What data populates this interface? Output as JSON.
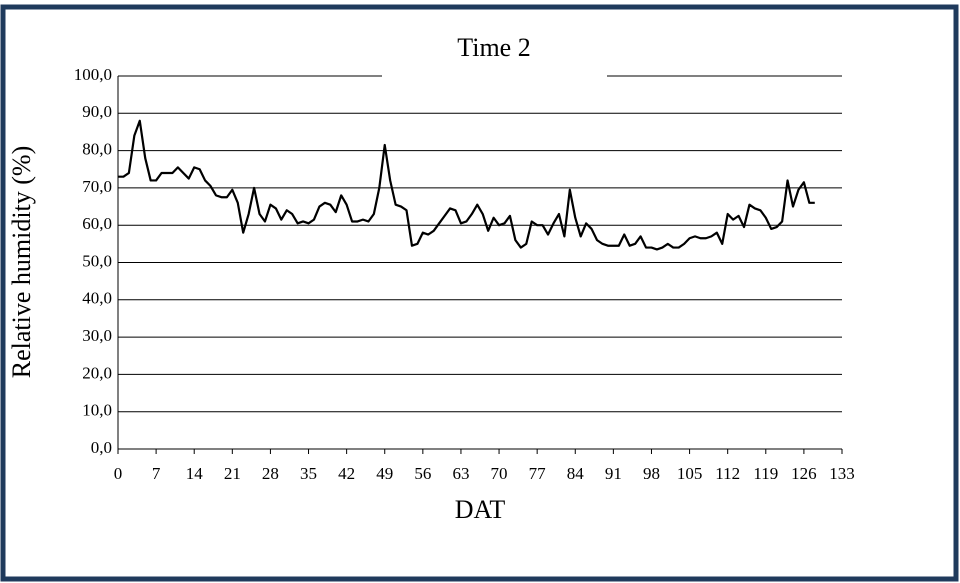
{
  "chart_data": {
    "type": "line",
    "title": "Time 2",
    "x_label": "DAT",
    "y_label": "Relative humidity (%)",
    "x": [
      0,
      1,
      2,
      3,
      4,
      5,
      6,
      7,
      8,
      9,
      10,
      11,
      12,
      13,
      14,
      15,
      16,
      17,
      18,
      19,
      20,
      21,
      22,
      23,
      24,
      25,
      26,
      27,
      28,
      29,
      30,
      31,
      32,
      33,
      34,
      35,
      36,
      37,
      38,
      39,
      40,
      41,
      42,
      43,
      44,
      45,
      46,
      47,
      48,
      49,
      50,
      51,
      52,
      53,
      54,
      55,
      56,
      57,
      58,
      59,
      60,
      61,
      62,
      63,
      64,
      65,
      66,
      67,
      68,
      69,
      70,
      71,
      72,
      73,
      74,
      75,
      76,
      77,
      78,
      79,
      80,
      81,
      82,
      83,
      84,
      85,
      86,
      87,
      88,
      89,
      90,
      91,
      92,
      93,
      94,
      95,
      96,
      97,
      98,
      99,
      100,
      101,
      102,
      103,
      104,
      105,
      106,
      107,
      108,
      109,
      110,
      111,
      112,
      113,
      114,
      115,
      116,
      117,
      118,
      119,
      120,
      121,
      122,
      123,
      124,
      125,
      126,
      127,
      128
    ],
    "series": [
      {
        "name": "Relative humidity",
        "color": "#000000",
        "values": [
          73,
          73,
          74,
          84,
          88,
          78,
          72,
          72,
          74,
          74,
          74,
          75.5,
          74,
          72.5,
          75.5,
          75,
          72,
          70.5,
          68,
          67.5,
          67.5,
          69.5,
          66,
          58,
          63,
          70,
          63,
          61,
          65.5,
          64.5,
          61.5,
          64,
          63,
          60.5,
          61,
          60.5,
          61.5,
          65,
          66,
          65.5,
          63.5,
          68,
          65.5,
          61,
          61,
          61.5,
          61,
          63,
          70,
          81.5,
          72,
          65.5,
          65,
          64,
          54.5,
          55,
          58,
          57.5,
          58.5,
          60.5,
          62.5,
          64.5,
          64,
          60.5,
          61,
          63,
          65.5,
          63,
          58.5,
          62,
          60,
          60.5,
          62.5,
          56,
          54,
          55,
          61,
          60,
          60,
          57.5,
          60.5,
          63,
          57,
          69.5,
          62,
          57,
          60.5,
          59,
          56,
          55,
          54.5,
          54.5,
          54.5,
          57.5,
          54.5,
          55,
          57,
          54,
          54,
          53.5,
          54,
          55,
          54,
          54,
          55,
          56.5,
          57,
          56.5,
          56.5,
          57,
          58,
          55,
          63,
          61.5,
          62.5,
          59.5,
          65.5,
          64.5,
          64,
          62,
          59,
          59.5,
          61,
          72,
          65,
          69.5,
          71.5,
          66,
          66
        ]
      }
    ],
    "xlim": [
      0,
      133
    ],
    "xticks": [
      0,
      7,
      14,
      21,
      28,
      35,
      42,
      49,
      56,
      63,
      70,
      77,
      84,
      91,
      98,
      105,
      112,
      119,
      126,
      133
    ],
    "ylim": [
      0,
      100
    ],
    "yticks": [
      {
        "value": 0,
        "label": "0,0"
      },
      {
        "value": 10,
        "label": "10,0"
      },
      {
        "value": 20,
        "label": "20,0"
      },
      {
        "value": 30,
        "label": "30,0"
      },
      {
        "value": 40,
        "label": "40,0"
      },
      {
        "value": 50,
        "label": "50,0"
      },
      {
        "value": 60,
        "label": "60,0"
      },
      {
        "value": 70,
        "label": "70,0"
      },
      {
        "value": 80,
        "label": "80,0"
      },
      {
        "value": 90,
        "label": "90,0"
      },
      {
        "value": 100,
        "label": "100,0"
      }
    ],
    "grid": true
  }
}
